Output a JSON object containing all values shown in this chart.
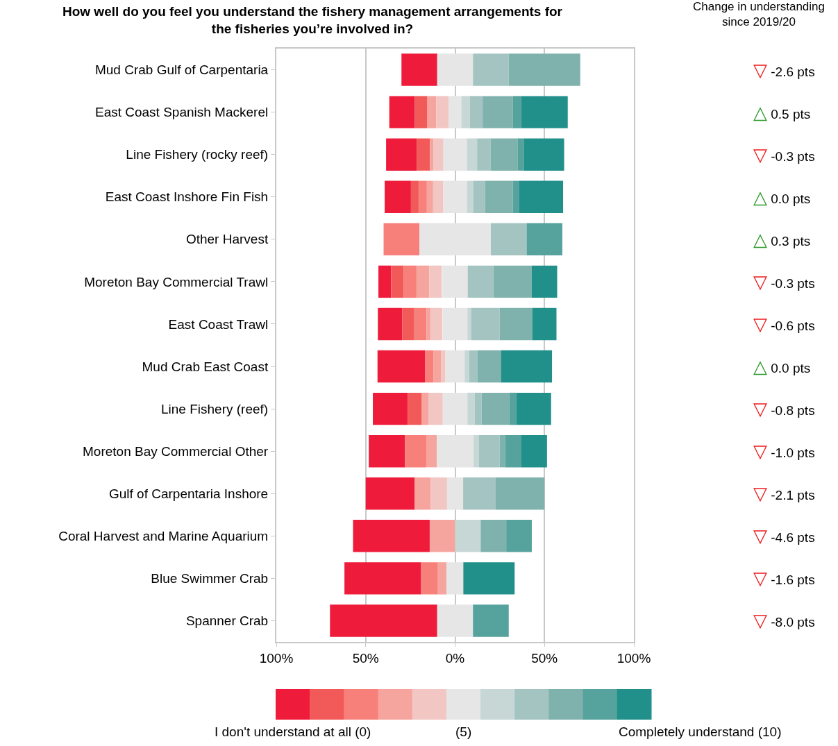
{
  "chart_data": [
    {
      "type": "bar",
      "title": "How well do you feel you understand the fishery management arrangements for\nthe fisheries you’re involved in?",
      "categories": [
        "Mud Crab Gulf of Carpentaria",
        "East Coast Spanish Mackerel",
        "Line Fishery (rocky reef)",
        "East Coast Inshore Fin Fish",
        "Other Harvest",
        "Moreton Bay Commercial Trawl",
        "East Coast Trawl",
        "Mud Crab East Coast",
        "Line Fishery (reef)",
        "Moreton Bay Commercial Other",
        "Gulf of Carpentaria Inshore",
        "Coral Harvest and Marine Aquarium",
        "Blue Swimmer Crab",
        "Spanner Crab"
      ],
      "orientation": "horizontal",
      "series": [
        {
          "name": "I don't understand at all (0)",
          "color": "#ee1b3b",
          "base": [
            -30.0,
            -36.8,
            -38.6,
            -39.4,
            null,
            -42.9,
            -43.2,
            -43.4,
            -46.0,
            -48.3,
            -50.0,
            -57.1,
            -61.9,
            -70.0
          ],
          "values": [
            20.0,
            14.3,
            17.1,
            14.7,
            null,
            7.1,
            13.7,
            26.7,
            19.6,
            20.3,
            27.3,
            42.9,
            42.9,
            60.0
          ]
        },
        {
          "color": "#f25a5a",
          "base": [
            null,
            -22.5,
            -21.5,
            -24.7,
            null,
            -35.8,
            -29.5,
            null,
            -26.4,
            null,
            null,
            null,
            null,
            null
          ],
          "values": [
            null,
            7.0,
            7.4,
            4.5,
            null,
            7.1,
            6.7,
            null,
            7.8,
            null,
            null,
            null,
            null,
            null
          ]
        },
        {
          "color": "#f7807a",
          "base": [
            null,
            null,
            null,
            -20.2,
            -40.0,
            -28.7,
            -22.8,
            -16.7,
            null,
            -28.0,
            null,
            null,
            -19.0,
            null
          ],
          "values": [
            null,
            null,
            null,
            4.4,
            20.0,
            7.1,
            6.8,
            4.7,
            null,
            11.9,
            null,
            null,
            9.4,
            null
          ]
        },
        {
          "color": "#f5a59e",
          "base": [
            null,
            -15.5,
            -14.1,
            -15.8,
            null,
            -21.6,
            -16.0,
            -12.0,
            -18.6,
            -16.1,
            -22.7,
            -14.2,
            -9.6,
            null
          ],
          "values": [
            null,
            4.9,
            1.9,
            3.5,
            null,
            7.1,
            2.3,
            4.1,
            3.9,
            5.9,
            9.1,
            14.3,
            4.8,
            null
          ]
        },
        {
          "color": "#f2c6c3",
          "base": [
            null,
            -10.6,
            -12.2,
            -12.3,
            null,
            -14.5,
            -13.7,
            -7.9,
            -14.7,
            null,
            -13.6,
            null,
            null,
            null
          ],
          "values": [
            null,
            7.1,
            5.7,
            5.7,
            null,
            7.1,
            6.6,
            2.5,
            7.8,
            null,
            9.1,
            null,
            null,
            null
          ]
        },
        {
          "name": "(5)",
          "color": "#e6e6e6",
          "base": [
            -10.0,
            -3.5,
            -6.6,
            -6.6,
            -20.0,
            -7.1,
            -6.9,
            -5.4,
            -6.9,
            -10.2,
            -4.5,
            null,
            -4.8,
            -10.0
          ],
          "values": [
            20.0,
            7.0,
            13.2,
            13.2,
            40.0,
            14.3,
            13.8,
            10.9,
            13.8,
            20.3,
            9.1,
            null,
            9.4,
            20.0
          ]
        },
        {
          "color": "#c6d7d5",
          "base": [
            null,
            3.5,
            6.6,
            6.6,
            null,
            null,
            6.9,
            5.4,
            6.9,
            10.2,
            null,
            0.0,
            null,
            null
          ],
          "values": [
            null,
            4.8,
            5.7,
            3.5,
            null,
            null,
            2.2,
            2.5,
            4.0,
            3.1,
            null,
            14.3,
            null,
            null
          ]
        },
        {
          "color": "#a3c4c1",
          "base": [
            10.0,
            8.3,
            12.3,
            10.1,
            20.0,
            7.1,
            9.1,
            7.9,
            10.9,
            13.3,
            4.5,
            null,
            null,
            null
          ],
          "values": [
            20.0,
            7.1,
            7.5,
            6.7,
            20.0,
            14.3,
            15.8,
            4.5,
            3.9,
            11.6,
            18.2,
            null,
            null,
            null
          ]
        },
        {
          "color": "#80b2ad",
          "base": [
            30.0,
            15.4,
            19.8,
            16.8,
            null,
            21.4,
            24.9,
            12.4,
            14.8,
            24.9,
            22.7,
            14.3,
            null,
            null
          ],
          "values": [
            40.0,
            16.8,
            15.1,
            15.5,
            null,
            21.4,
            18.2,
            13.2,
            15.5,
            3.1,
            27.3,
            14.3,
            null,
            null
          ]
        },
        {
          "color": "#56a29d",
          "base": [
            null,
            32.2,
            34.9,
            32.3,
            40.0,
            null,
            null,
            null,
            30.3,
            28.0,
            null,
            28.6,
            null,
            10.0
          ],
          "values": [
            null,
            4.8,
            3.7,
            3.6,
            20.0,
            null,
            null,
            null,
            4.1,
            8.8,
            null,
            14.3,
            null,
            20.0
          ]
        },
        {
          "name": "Completely understand (10)",
          "color": "#21908a",
          "base": [
            null,
            37.0,
            38.6,
            35.9,
            null,
            42.8,
            43.1,
            25.6,
            34.4,
            36.8,
            null,
            null,
            4.6,
            null
          ],
          "values": [
            null,
            26.0,
            22.4,
            24.5,
            null,
            14.3,
            13.6,
            28.6,
            19.3,
            14.6,
            null,
            null,
            28.7,
            null
          ]
        }
      ],
      "xlim": [
        -100,
        100
      ],
      "xticks": [
        {
          "value": -100,
          "label": "100%"
        },
        {
          "value": -50,
          "label": "50%"
        },
        {
          "value": 0,
          "label": "0%"
        },
        {
          "value": 50,
          "label": "50%"
        },
        {
          "value": 100,
          "label": "100%"
        }
      ],
      "grid": "x",
      "legend": "bottom"
    },
    {
      "type": "other",
      "title": "Change in understanding\nsince 2019/20",
      "categories": [
        "▽ -2.6 pts",
        "△ 0.5 pts",
        "▽ -0.3 pts",
        "△ 0.0 pts",
        "△ 0.3 pts",
        "▽ -0.3 pts",
        "▽ -0.6 pts",
        "△ 0.0 pts",
        "▽ -0.8 pts",
        "▽ -1.0 pts",
        "▽ -2.1 pts",
        "▽ -4.6 pts",
        "▽ -1.6 pts",
        "▽ -8.0 pts"
      ],
      "colors": [
        "#ee1b1b",
        "#2e9a2e",
        "#ee1b1b",
        "#2e9a2e",
        "#2e9a2e",
        "#ee1b1b",
        "#ee1b1b",
        "#2e9a2e",
        "#ee1b1b",
        "#ee1b1b",
        "#ee1b1b",
        "#ee1b1b",
        "#ee1b1b",
        "#ee1b1b"
      ]
    }
  ]
}
